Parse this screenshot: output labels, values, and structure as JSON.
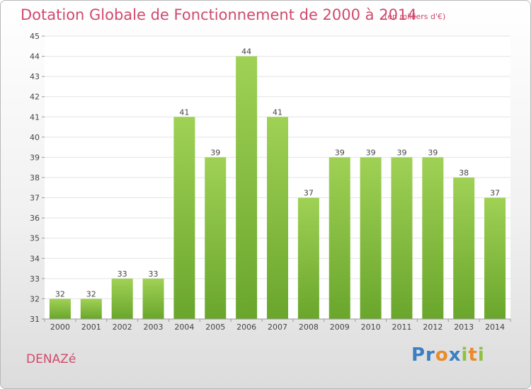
{
  "header": {
    "title": "Dotation Globale de Fonctionnement de 2000 à 2014",
    "unit": "(en milliers d'€)"
  },
  "footer": {
    "town": "DENAZé",
    "logo_text": "Proxiti"
  },
  "colors": {
    "bar_top": "#9fd155",
    "bar_bottom": "#6aa62c",
    "text_accent": "#d04a6c",
    "grid": "#e3e3e3"
  },
  "chart_data": {
    "type": "bar",
    "title": "Dotation Globale de Fonctionnement de 2000 à 2014",
    "subtitle": "(en milliers d'€)",
    "categories": [
      "2000",
      "2001",
      "2002",
      "2003",
      "2004",
      "2005",
      "2006",
      "2007",
      "2008",
      "2009",
      "2010",
      "2011",
      "2012",
      "2013",
      "2014"
    ],
    "values": [
      32,
      32,
      33,
      33,
      41,
      39,
      44,
      41,
      37,
      39,
      39,
      39,
      39,
      38,
      37
    ],
    "ylim": [
      31,
      45
    ],
    "yticks": [
      31,
      32,
      33,
      34,
      35,
      36,
      37,
      38,
      39,
      40,
      41,
      42,
      43,
      44,
      45
    ],
    "xlabel": "",
    "ylabel": "",
    "grid": true,
    "data_labels": true
  }
}
